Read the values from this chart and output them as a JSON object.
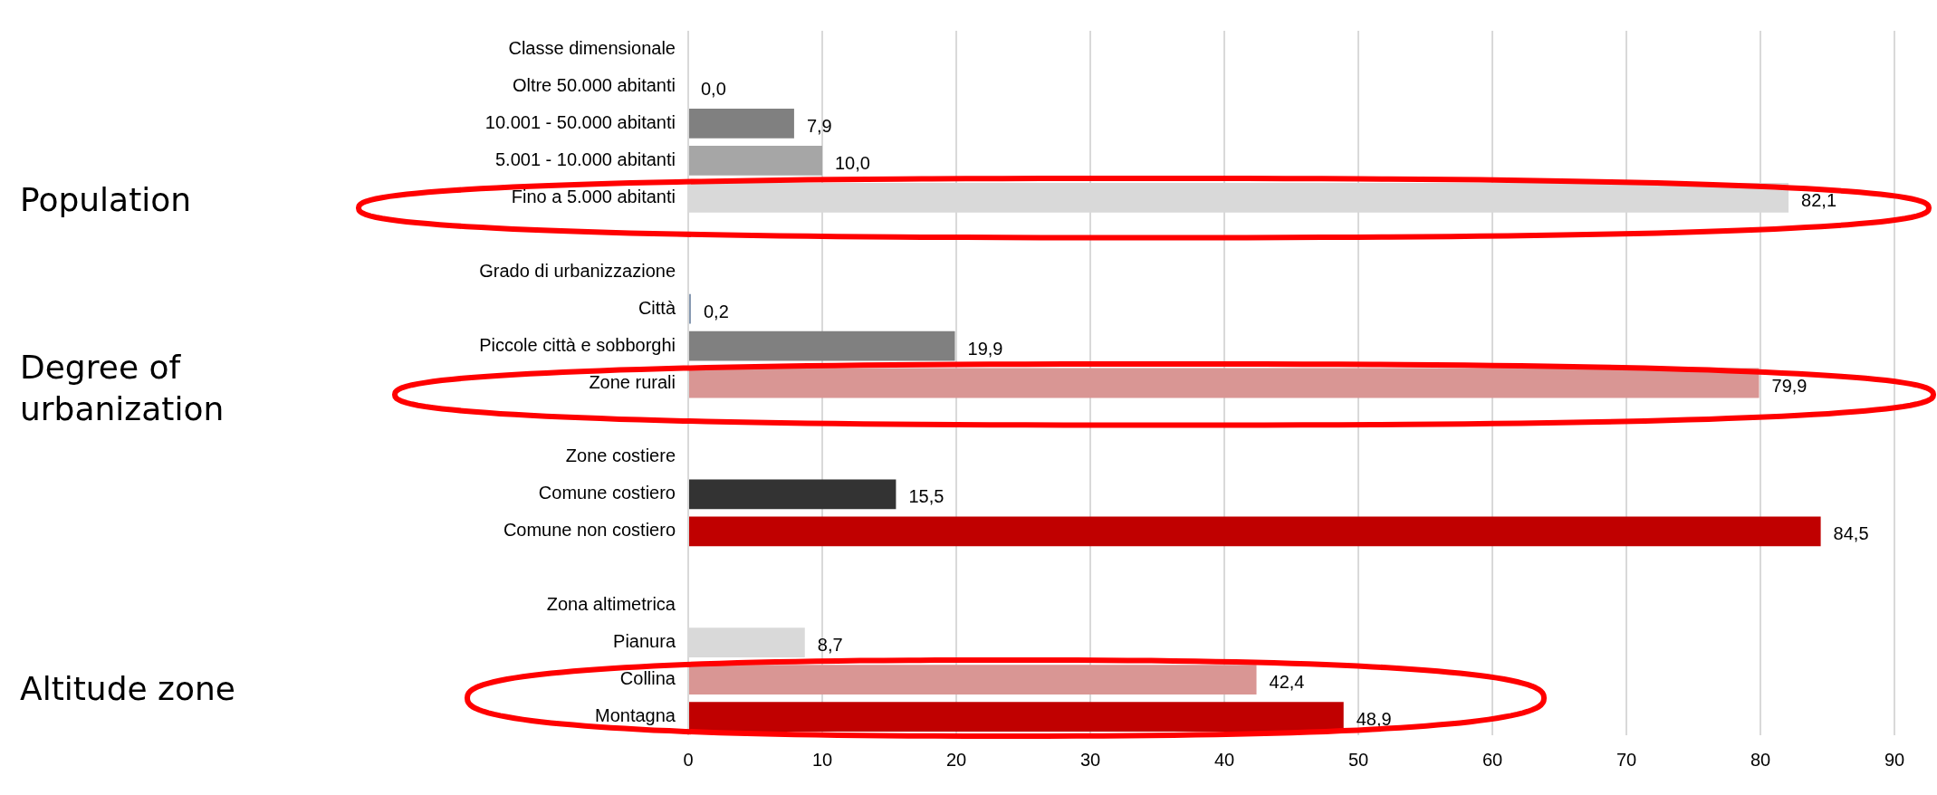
{
  "chart_data": {
    "type": "bar",
    "orientation": "horizontal",
    "categories": [
      "Classe dimensionale",
      "Oltre 50.000 abitanti",
      "10.001 - 50.000 abitanti",
      "5.001 - 10.000 abitanti",
      "Fino a 5.000 abitanti",
      null,
      "Grado di urbanizzazione",
      "Città",
      "Piccole città e sobborghi",
      "Zone rurali",
      null,
      "Zone costiere",
      "Comune costiero",
      "Comune non costiero",
      null,
      "Zona altimetrica",
      "Pianura",
      "Collina",
      "Montagna"
    ],
    "values": [
      null,
      0.0,
      7.9,
      10.0,
      82.1,
      null,
      null,
      0.2,
      19.9,
      79.9,
      null,
      null,
      15.5,
      84.5,
      null,
      null,
      8.7,
      42.4,
      48.9
    ],
    "value_labels": [
      null,
      "0,0",
      "7,9",
      "10,0",
      "82,1",
      null,
      null,
      "0,2",
      "19,9",
      "79,9",
      null,
      null,
      "15,5",
      "84,5",
      null,
      null,
      "8,7",
      "42,4",
      "48,9"
    ],
    "colors": [
      "#ffffff",
      "#808080",
      "#808080",
      "#a6a6a6",
      "#d9d9d9",
      "#ffffff",
      "#ffffff",
      "#8497b0",
      "#808080",
      "#d99694",
      "#ffffff",
      "#ffffff",
      "#333333",
      "#c00000",
      "#ffffff",
      "#ffffff",
      "#d9d9d9",
      "#d99694",
      "#c00000"
    ],
    "xlim": [
      0,
      90
    ],
    "xticks": [
      0,
      10,
      20,
      30,
      40,
      50,
      60,
      70,
      80,
      90
    ],
    "grid": "x",
    "legend": false,
    "annotations": [
      "Population",
      "Degree of urbanization",
      "Altitude zone"
    ]
  }
}
